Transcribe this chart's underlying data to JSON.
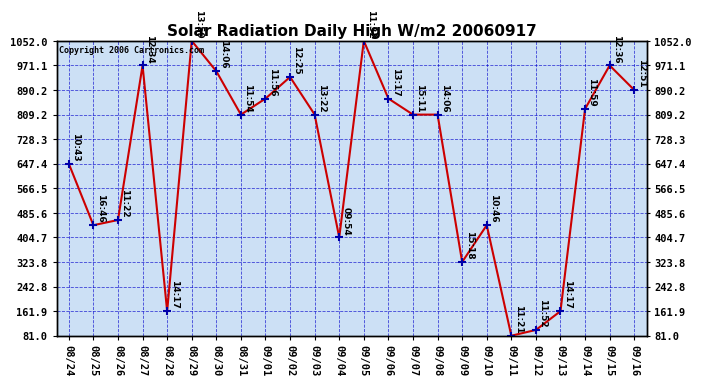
{
  "title": "Solar Radiation Daily High W/m2 20060917",
  "copyright": "Copyright 2006 Cartronics.com",
  "x_labels": [
    "08/24",
    "08/25",
    "08/26",
    "08/27",
    "08/28",
    "08/29",
    "08/30",
    "08/31",
    "09/01",
    "09/02",
    "09/03",
    "09/04",
    "09/05",
    "09/06",
    "09/07",
    "09/08",
    "09/09",
    "09/10",
    "09/11",
    "09/12",
    "09/13",
    "09/14",
    "09/15",
    "09/16"
  ],
  "y_values": [
    647.4,
    445.0,
    462.0,
    971.1,
    161.9,
    1052.0,
    952.0,
    809.2,
    862.0,
    933.0,
    809.2,
    404.7,
    1052.0,
    862.0,
    809.2,
    809.2,
    323.8,
    445.0,
    81.0,
    100.0,
    161.9,
    828.0,
    971.1,
    890.2
  ],
  "point_labels": [
    "10:43",
    "16:46",
    "11:22",
    "12:34",
    "14:17",
    "13:59",
    "14:06",
    "11:54",
    "11:56",
    "12:25",
    "13:22",
    "09:54",
    "11:32",
    "13:17",
    "15:11",
    "14:06",
    "15:18",
    "10:46",
    "11:21",
    "11:52",
    "14:17",
    "11:59",
    "12:36",
    "12:51"
  ],
  "ylim_min": 81.0,
  "ylim_max": 1052.0,
  "y_ticks": [
    81.0,
    161.9,
    242.8,
    323.8,
    404.7,
    485.6,
    566.5,
    647.4,
    728.3,
    809.2,
    890.2,
    971.1,
    1052.0
  ],
  "line_color": "#cc0000",
  "marker_color": "#0000aa",
  "bg_color": "#cce0f5",
  "grid_color": "#0000cc",
  "title_fontsize": 11,
  "label_fontsize": 6.5,
  "tick_fontsize": 7.5,
  "copyright_fontsize": 6.0
}
